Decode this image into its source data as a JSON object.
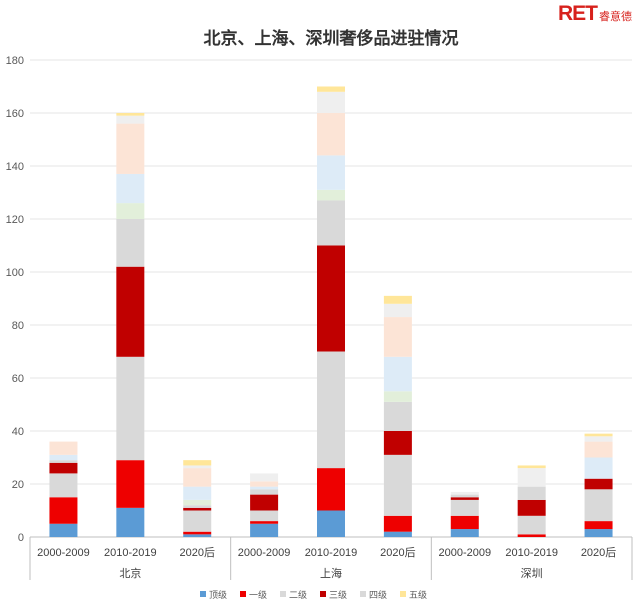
{
  "logo": {
    "mark": "RET",
    "sub": "睿意德"
  },
  "chart_data": {
    "type": "bar",
    "stacked": true,
    "title": "北京、上海、深圳奢侈品进驻情况",
    "ylim": [
      0,
      180
    ],
    "yticks": [
      0,
      20,
      40,
      60,
      80,
      100,
      120,
      140,
      160,
      180
    ],
    "grid": true,
    "legend_position": "bottom",
    "groups": [
      {
        "label": "北京",
        "categories": [
          "2000-2009",
          "2010-2019",
          "2020后"
        ]
      },
      {
        "label": "上海",
        "categories": [
          "2000-2009",
          "2010-2019",
          "2020后"
        ]
      },
      {
        "label": "深圳",
        "categories": [
          "2000-2009",
          "2010-2019",
          "2020后"
        ]
      }
    ],
    "series": [
      {
        "name": "顶级",
        "color": "#5b9bd5",
        "values": [
          5,
          11,
          1,
          5,
          10,
          2,
          3,
          0,
          3
        ]
      },
      {
        "name": "一级",
        "color": "#ee0000",
        "values": [
          10,
          18,
          1,
          1,
          16,
          6,
          5,
          1,
          3
        ]
      },
      {
        "name": "二级",
        "color": "#d9d9d9",
        "values": [
          9,
          39,
          8,
          4,
          44,
          23,
          6,
          7,
          12
        ]
      },
      {
        "name": "三级",
        "color": "#c00000",
        "values": [
          4,
          34,
          1,
          6,
          40,
          9,
          1,
          6,
          4
        ]
      },
      {
        "name": "四级",
        "color": "#d9d9d9",
        "values": [
          1,
          18,
          1,
          2,
          17,
          11,
          1,
          5,
          0
        ]
      },
      {
        "name": "",
        "color": "#e2efda",
        "values": [
          0,
          6,
          2,
          0,
          4,
          4,
          0,
          0,
          0
        ]
      },
      {
        "name": "",
        "color": "#ddebf7",
        "values": [
          2,
          11,
          5,
          1,
          13,
          13,
          0,
          0,
          8
        ]
      },
      {
        "name": "",
        "color": "#fce4d6",
        "values": [
          5,
          19,
          7,
          2,
          16,
          15,
          0,
          0,
          6
        ]
      },
      {
        "name": "",
        "color": "#efefef",
        "values": [
          0,
          3,
          1,
          3,
          8,
          5,
          1,
          7,
          2
        ]
      },
      {
        "name": "五级",
        "color": "#ffe699",
        "values": [
          0,
          1,
          2,
          0,
          2,
          3,
          0,
          1,
          1
        ]
      }
    ],
    "legend": [
      "顶级",
      "一级",
      "二级",
      "三级",
      "四级",
      "五级"
    ]
  }
}
